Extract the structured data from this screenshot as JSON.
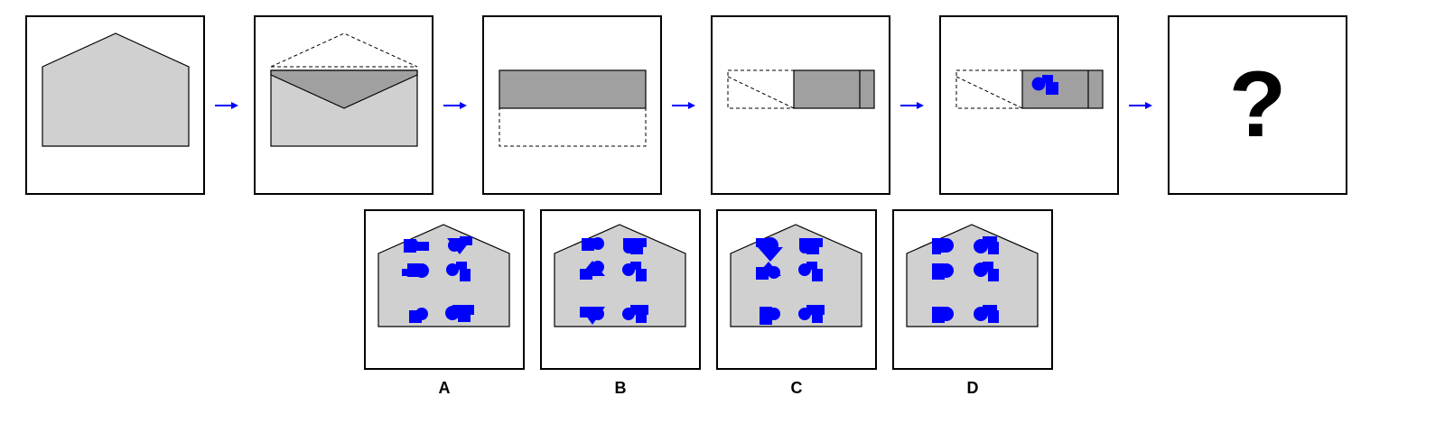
{
  "sequence": {
    "steps": [
      {
        "name": "house"
      },
      {
        "name": "fold-roof-down"
      },
      {
        "name": "folded-rectangle"
      },
      {
        "name": "fold-side"
      },
      {
        "name": "punched-shapes"
      }
    ],
    "question_mark": "?"
  },
  "options": [
    {
      "label": "A"
    },
    {
      "label": "B"
    },
    {
      "label": "C"
    },
    {
      "label": "D"
    }
  ],
  "colors": {
    "paper": "#d0d0d0",
    "folded": "#a0a0a0",
    "hole": "#0000ff",
    "arrow": "#0000ff",
    "outline": "#000000"
  }
}
